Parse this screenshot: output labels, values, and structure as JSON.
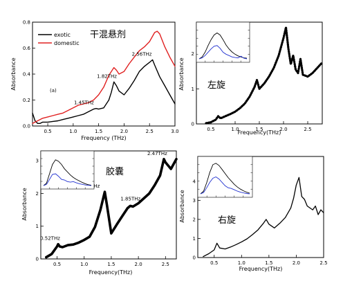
{
  "chart_data": [
    {
      "id": "tl",
      "type": "line",
      "title": "干混悬剂",
      "subtitle": "(a)",
      "xlabel": "Frequency (THz)",
      "ylabel": "Absorbance",
      "xlim": [
        0.2,
        3.0
      ],
      "ylim": [
        0.0,
        0.8
      ],
      "xticks": [
        0.5,
        1.0,
        1.5,
        2.0,
        2.5,
        3.0
      ],
      "xtick_labels": [
        "0.5",
        "1.0",
        "1.5",
        "2.0",
        "2.5",
        "3.0"
      ],
      "yticks": [
        0.0,
        0.2,
        0.4,
        0.6,
        0.8
      ],
      "ytick_labels": [
        "0.0",
        "0.2",
        "0.4",
        "0.6",
        "0.8"
      ],
      "legend_position": "top-left",
      "series": [
        {
          "name": "exotic",
          "color": "#000000",
          "x": [
            0.2,
            0.25,
            0.3,
            0.35,
            0.4,
            0.5,
            0.6,
            0.7,
            0.8,
            0.9,
            1.0,
            1.1,
            1.2,
            1.3,
            1.4,
            1.45,
            1.5,
            1.6,
            1.7,
            1.75,
            1.8,
            1.85,
            1.9,
            2.0,
            2.1,
            2.2,
            2.3,
            2.4,
            2.5,
            2.56,
            2.6,
            2.7,
            2.8,
            2.9,
            3.0
          ],
          "y": [
            0.1,
            0.04,
            0.02,
            0.02,
            0.03,
            0.03,
            0.035,
            0.04,
            0.05,
            0.06,
            0.07,
            0.08,
            0.09,
            0.11,
            0.13,
            0.135,
            0.13,
            0.14,
            0.2,
            0.26,
            0.34,
            0.31,
            0.27,
            0.24,
            0.29,
            0.35,
            0.42,
            0.46,
            0.49,
            0.51,
            0.47,
            0.38,
            0.31,
            0.24,
            0.17
          ]
        },
        {
          "name": "domestic",
          "color": "#e02020",
          "x": [
            0.2,
            0.25,
            0.3,
            0.4,
            0.5,
            0.6,
            0.7,
            0.8,
            0.9,
            1.0,
            1.1,
            1.2,
            1.3,
            1.4,
            1.5,
            1.6,
            1.7,
            1.8,
            1.85,
            1.9,
            2.0,
            2.1,
            2.2,
            2.3,
            2.4,
            2.5,
            2.6,
            2.65,
            2.7,
            2.8,
            2.9,
            3.0
          ],
          "y": [
            0.02,
            0.03,
            0.04,
            0.06,
            0.07,
            0.08,
            0.09,
            0.1,
            0.12,
            0.14,
            0.16,
            0.17,
            0.18,
            0.2,
            0.24,
            0.3,
            0.39,
            0.45,
            0.43,
            0.4,
            0.42,
            0.48,
            0.53,
            0.58,
            0.61,
            0.65,
            0.72,
            0.73,
            0.71,
            0.61,
            0.53,
            0.46
          ]
        }
      ],
      "annotations": [
        {
          "text": "1.45THz",
          "x": 1.45,
          "y": 0.135
        },
        {
          "text": "1.82THz",
          "x": 1.82,
          "y": 0.34
        },
        {
          "text": "2.56THz",
          "x": 2.56,
          "y": 0.51
        }
      ]
    },
    {
      "id": "tr",
      "type": "line",
      "title": "左旋",
      "xlabel": "Frequency(THz)",
      "ylabel": "Absorbance",
      "xlim": [
        0.2,
        2.8
      ],
      "ylim": [
        0,
        2.9
      ],
      "xticks": [
        0.5,
        1.0,
        1.5,
        2.0,
        2.5
      ],
      "xtick_labels": [
        "0.5",
        "1.0",
        "1.5",
        "2.0",
        "2.5"
      ],
      "yticks": [
        0,
        1,
        2
      ],
      "ytick_labels": [
        "0",
        "1",
        "2"
      ],
      "series": [
        {
          "color": "#000000",
          "x": [
            0.4,
            0.5,
            0.6,
            0.65,
            0.7,
            0.8,
            0.9,
            1.0,
            1.1,
            1.2,
            1.3,
            1.4,
            1.45,
            1.5,
            1.6,
            1.7,
            1.8,
            1.9,
            2.0,
            2.05,
            2.1,
            2.15,
            2.2,
            2.25,
            2.3,
            2.35,
            2.4,
            2.5,
            2.6,
            2.7,
            2.8
          ],
          "y": [
            0.02,
            0.05,
            0.12,
            0.22,
            0.16,
            0.22,
            0.28,
            0.35,
            0.45,
            0.58,
            0.78,
            1.05,
            1.25,
            1.0,
            1.15,
            1.35,
            1.6,
            1.95,
            2.45,
            2.75,
            2.15,
            1.7,
            1.95,
            1.55,
            1.45,
            1.85,
            1.4,
            1.35,
            1.45,
            1.6,
            1.75
          ]
        }
      ],
      "inset": {
        "series": [
          {
            "color": "#000000",
            "y": [
              0.02,
              0.08,
              0.22,
              0.42,
              0.6,
              0.74,
              0.8,
              0.74,
              0.6,
              0.44,
              0.32,
              0.23,
              0.16,
              0.11,
              0.08,
              0.05,
              0.04
            ]
          },
          {
            "color": "#2030d0",
            "y": [
              0.02,
              0.05,
              0.12,
              0.22,
              0.32,
              0.4,
              0.42,
              0.34,
              0.22,
              0.16,
              0.12,
              0.08,
              0.06,
              0.05,
              0.1,
              0.04,
              0.02
            ]
          }
        ]
      }
    },
    {
      "id": "bl",
      "type": "line",
      "title": "胶囊",
      "xlabel": "Frequency(THz)",
      "ylabel": "Absorbance",
      "xlim": [
        0.2,
        2.7
      ],
      "ylim": [
        0,
        3.3
      ],
      "xticks": [
        0.5,
        1.0,
        1.5,
        2.0,
        2.5
      ],
      "xtick_labels": [
        "0.5",
        "1.0",
        "1.5",
        "2.0",
        "2.5"
      ],
      "yticks": [
        0,
        1,
        2,
        3
      ],
      "ytick_labels": [
        "0",
        "1",
        "2",
        "3"
      ],
      "series": [
        {
          "color": "#000000",
          "x": [
            0.3,
            0.4,
            0.5,
            0.52,
            0.55,
            0.6,
            0.7,
            0.8,
            0.9,
            1.0,
            1.1,
            1.2,
            1.3,
            1.38,
            1.42,
            1.5,
            1.6,
            1.7,
            1.8,
            1.85,
            1.9,
            2.0,
            2.1,
            2.2,
            2.3,
            2.4,
            2.47,
            2.5,
            2.6,
            2.7
          ],
          "y": [
            0.05,
            0.15,
            0.38,
            0.45,
            0.38,
            0.36,
            0.42,
            0.44,
            0.5,
            0.58,
            0.68,
            0.98,
            1.5,
            2.05,
            1.65,
            0.78,
            1.05,
            1.3,
            1.55,
            1.62,
            1.6,
            1.7,
            1.85,
            2.0,
            2.25,
            2.55,
            3.05,
            2.95,
            2.75,
            3.05
          ]
        }
      ],
      "annotations": [
        {
          "text": "0.52THz",
          "x": 0.52,
          "y": 0.45
        },
        {
          "text": "1.38THz",
          "x": 1.38,
          "y": 2.05
        },
        {
          "text": "1.85THz",
          "x": 1.85,
          "y": 1.62
        },
        {
          "text": "2.47THz",
          "x": 2.47,
          "y": 3.05
        }
      ],
      "inset": {
        "series": [
          {
            "color": "#000000",
            "y": [
              0.02,
              0.1,
              0.4,
              0.7,
              0.85,
              0.8,
              0.7,
              0.56,
              0.46,
              0.36,
              0.28,
              0.22,
              0.17,
              0.12,
              0.08,
              0.05,
              0.03
            ]
          },
          {
            "color": "#2030d0",
            "y": [
              0.02,
              0.06,
              0.22,
              0.38,
              0.4,
              0.32,
              0.22,
              0.2,
              0.15,
              0.13,
              0.15,
              0.11,
              0.08,
              0.06,
              0.04,
              0.03,
              0.02
            ]
          }
        ]
      }
    },
    {
      "id": "br",
      "type": "line",
      "title": "右旋",
      "xlabel": "Frequency(THz)",
      "ylabel": "Absorbance",
      "xlim": [
        0.2,
        2.5
      ],
      "ylim": [
        0,
        5.3
      ],
      "xticks": [
        0.5,
        1.0,
        1.5,
        2.0,
        2.5
      ],
      "xtick_labels": [
        "0.5",
        "1.0",
        "1.5",
        "2.0",
        "2.5"
      ],
      "yticks": [
        0,
        1,
        2,
        3,
        4
      ],
      "ytick_labels": [
        "0",
        "1",
        "2",
        "3",
        "4"
      ],
      "series": [
        {
          "color": "#000000",
          "x": [
            0.3,
            0.4,
            0.5,
            0.55,
            0.6,
            0.7,
            0.8,
            0.9,
            1.0,
            1.1,
            1.2,
            1.3,
            1.4,
            1.45,
            1.5,
            1.6,
            1.7,
            1.8,
            1.9,
            1.95,
            2.0,
            2.05,
            2.1,
            2.15,
            2.2,
            2.3,
            2.35,
            2.4,
            2.45,
            2.5
          ],
          "y": [
            0.05,
            0.2,
            0.4,
            0.75,
            0.5,
            0.45,
            0.55,
            0.68,
            0.82,
            0.98,
            1.2,
            1.45,
            1.8,
            2.0,
            1.75,
            1.55,
            1.8,
            2.1,
            2.6,
            3.1,
            3.8,
            4.2,
            3.2,
            3.05,
            2.7,
            2.5,
            2.7,
            2.25,
            2.5,
            2.35
          ]
        }
      ],
      "inset": {
        "series": [
          {
            "color": "#000000",
            "y": [
              0.02,
              0.1,
              0.35,
              0.65,
              0.88,
              0.92,
              0.86,
              0.74,
              0.62,
              0.5,
              0.4,
              0.3,
              0.22,
              0.16,
              0.11,
              0.07,
              0.04
            ]
          },
          {
            "color": "#2030d0",
            "y": [
              0.02,
              0.06,
              0.2,
              0.36,
              0.48,
              0.52,
              0.46,
              0.36,
              0.26,
              0.2,
              0.18,
              0.14,
              0.1,
              0.07,
              0.05,
              0.03,
              0.02
            ]
          }
        ]
      }
    }
  ]
}
